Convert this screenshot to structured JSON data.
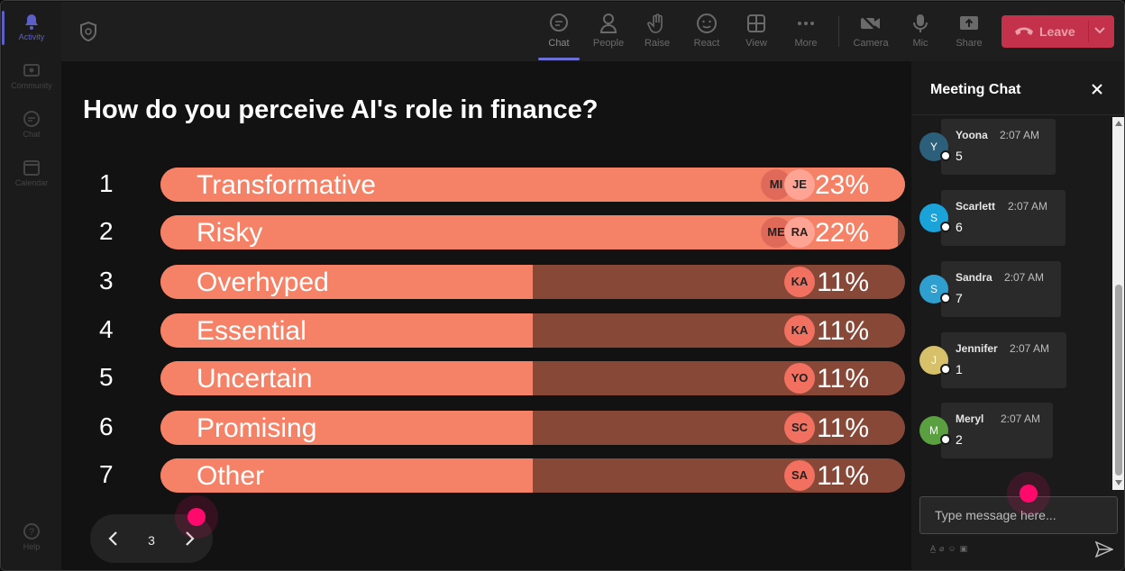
{
  "rail": {
    "items": [
      {
        "label": "Activity",
        "icon": "bell-icon",
        "active": true
      },
      {
        "label": "Community",
        "icon": "community-icon"
      },
      {
        "label": "Chat",
        "icon": "chat-icon"
      },
      {
        "label": "Calendar",
        "icon": "calendar-icon"
      }
    ],
    "help_label": "Help"
  },
  "toolbar": {
    "buttons": [
      {
        "label": "Chat",
        "icon": "chat-icon",
        "active": true
      },
      {
        "label": "People",
        "icon": "people-icon"
      },
      {
        "label": "Raise",
        "icon": "hand-icon"
      },
      {
        "label": "React",
        "icon": "smile-icon"
      },
      {
        "label": "View",
        "icon": "grid-icon"
      },
      {
        "label": "More",
        "icon": "more-icon"
      },
      {
        "label": "Camera",
        "icon": "camera-off-icon"
      },
      {
        "label": "Mic",
        "icon": "mic-icon"
      },
      {
        "label": "Share",
        "icon": "share-icon"
      }
    ],
    "leave_label": "Leave"
  },
  "poll": {
    "question": "How do you perceive AI's role in finance?",
    "options": [
      {
        "num": "1",
        "label": "Transformative",
        "percent_text": "23%",
        "fill": 1.0,
        "avatars": [
          "MI",
          "JE"
        ]
      },
      {
        "num": "2",
        "label": "Risky",
        "percent_text": "22%",
        "fill": 0.99,
        "avatars": [
          "ME",
          "RA"
        ]
      },
      {
        "num": "3",
        "label": "Overhyped",
        "percent_text": "11%",
        "fill": 0.5,
        "avatars": [
          "KA"
        ]
      },
      {
        "num": "4",
        "label": "Essential",
        "percent_text": "11%",
        "fill": 0.5,
        "avatars": [
          "KA"
        ]
      },
      {
        "num": "5",
        "label": "Uncertain",
        "percent_text": "11%",
        "fill": 0.5,
        "avatars": [
          "YO"
        ]
      },
      {
        "num": "6",
        "label": "Promising",
        "percent_text": "11%",
        "fill": 0.5,
        "avatars": [
          "SC"
        ]
      },
      {
        "num": "7",
        "label": "Other",
        "percent_text": "11%",
        "fill": 0.5,
        "avatars": [
          "SA"
        ]
      }
    ],
    "page": "3"
  },
  "chat": {
    "title": "Meeting Chat",
    "messages": [
      {
        "initial": "Y",
        "name": "Yoona",
        "time": "2:07 AM",
        "text": "5",
        "color": "#2b5f7a"
      },
      {
        "initial": "S",
        "name": "Scarlett",
        "time": "2:07 AM",
        "text": "6",
        "color": "#1aa3d9"
      },
      {
        "initial": "S",
        "name": "Sandra",
        "time": "2:07 AM",
        "text": "7",
        "color": "#2f9fd0"
      },
      {
        "initial": "J",
        "name": "Jennifer",
        "time": "2:07 AM",
        "text": "1",
        "color": "#d6c06a"
      },
      {
        "initial": "M",
        "name": "Meryl",
        "time": "2:07 AM",
        "text": "2",
        "color": "#5aa040"
      }
    ],
    "input_placeholder": "Type message here..."
  },
  "colors": {
    "bar_fill": "#f58266",
    "bar_track": "#874838",
    "leave": "#c4314b",
    "accent": "#5b5fc7"
  }
}
